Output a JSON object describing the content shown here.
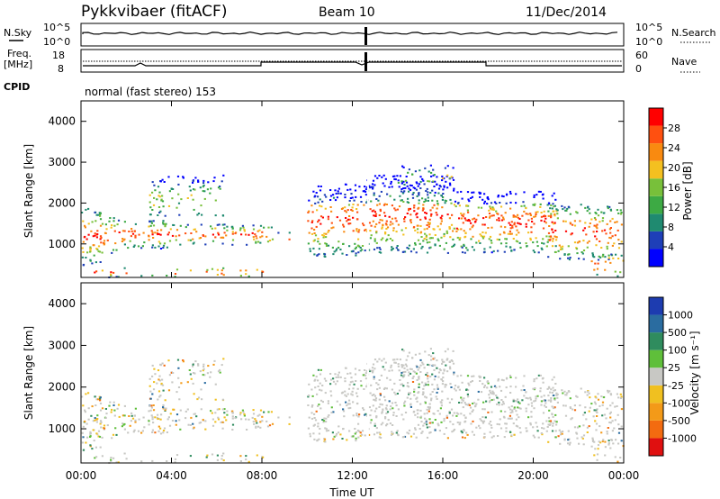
{
  "header": {
    "radar": "Pykkvibaer (fitACF)",
    "beam": "Beam 10",
    "date": "11/Dec/2014"
  },
  "noise_panel": {
    "left_label": "N.Sky",
    "right_label": "N.Search",
    "left_ticks": [
      "10^5",
      "10^0"
    ],
    "right_ticks": [
      "10^5",
      "10^0"
    ]
  },
  "freq_panel": {
    "left_label_1": "Freq.",
    "left_label_2": "[MHz]",
    "right_label": "Nave",
    "left_ticks": [
      "18",
      "8"
    ],
    "right_ticks": [
      "60",
      "0"
    ],
    "cpid_label": "CPID",
    "cpid_text": "normal (fast stereo) 153"
  },
  "chart_data": [
    {
      "type": "heatmap",
      "title": "",
      "ylabel": "Slant Range [km]",
      "xlabel": "",
      "x_range_hours": [
        0,
        24
      ],
      "ylim": [
        180,
        4500
      ],
      "yticks": [
        "4000",
        "3000",
        "2000",
        "1000"
      ],
      "colorbar_label": "Power [dB]",
      "colorbar_ticks": [
        "28",
        "24",
        "20",
        "16",
        "12",
        "8",
        "4"
      ],
      "colorbar_colors": [
        "#0000ff",
        "#1e3fb8",
        "#1f8a70",
        "#3daa44",
        "#78c03a",
        "#f4c020",
        "#f98a10",
        "#ff5010",
        "#ff0000"
      ]
    },
    {
      "type": "heatmap",
      "title": "",
      "ylabel": "Slant Range [km]",
      "xlabel": "Time UT",
      "x_range_hours": [
        0,
        24
      ],
      "ylim": [
        180,
        4500
      ],
      "yticks": [
        "4000",
        "3000",
        "2000",
        "1000"
      ],
      "xticks": [
        "00:00",
        "04:00",
        "08:00",
        "12:00",
        "16:00",
        "20:00",
        "00:00"
      ],
      "colorbar_label": "Velocity [m s⁻¹]",
      "colorbar_ticks": [
        "1000",
        "500",
        "100",
        "25",
        "-25",
        "-100",
        "-500",
        "-1000"
      ],
      "colorbar_colors": [
        "#1d3cb0",
        "#2a6ca0",
        "#2f8c5e",
        "#5fbf3a",
        "#c8c8c4",
        "#f0c020",
        "#f39a18",
        "#f36b10",
        "#e01010"
      ]
    }
  ]
}
